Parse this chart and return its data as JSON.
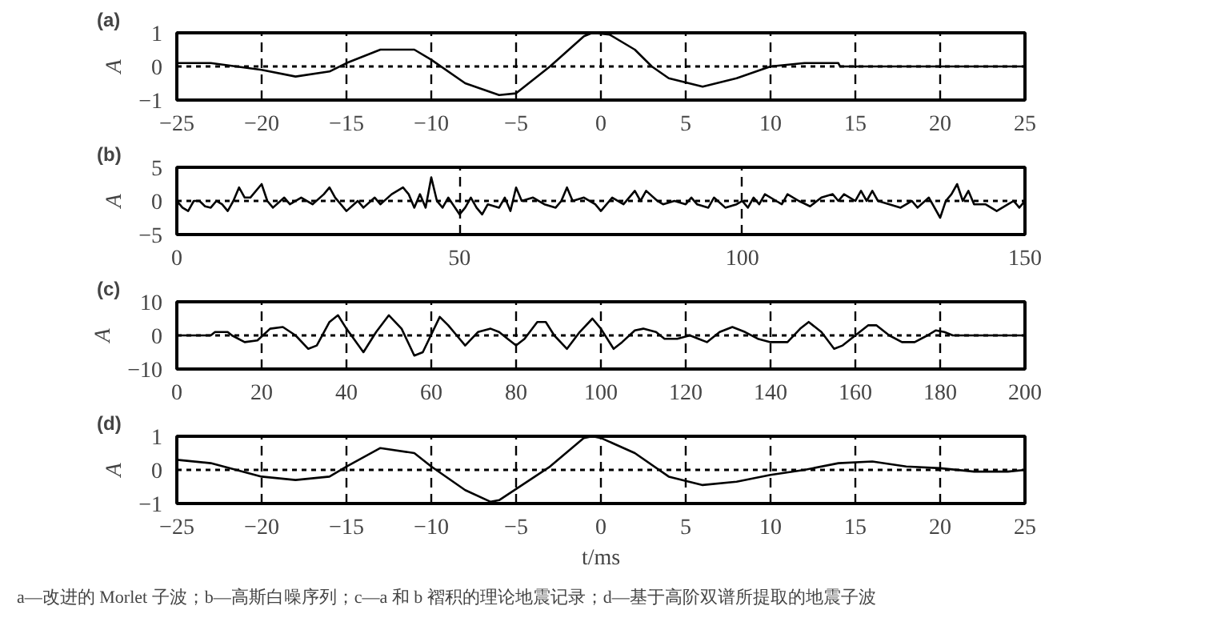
{
  "chart_data": [
    {
      "type": "line",
      "title": "(a)",
      "ylabel": "A",
      "color": "#000000",
      "line_style": "solid",
      "grid": "x",
      "xlim": [
        -25,
        25
      ],
      "ylim": [
        -1,
        1
      ],
      "xticks": [
        -25,
        -20,
        -15,
        -10,
        -5,
        0,
        5,
        10,
        15,
        20,
        25
      ],
      "yticks": [
        -1,
        0,
        1
      ],
      "ref_lines": [
        {
          "axis": "y",
          "value": 0,
          "line_style": "dotted"
        }
      ],
      "x": [
        -25,
        -23,
        -20,
        -18,
        -16,
        -15,
        -13,
        -11,
        -10,
        -8,
        -6,
        -5,
        -3,
        -1,
        -0.5,
        0.5,
        2,
        3,
        4,
        6,
        8,
        10,
        12,
        14,
        14.1,
        25
      ],
      "values": [
        0.1,
        0.1,
        -0.1,
        -0.3,
        -0.15,
        0.1,
        0.5,
        0.5,
        0.2,
        -0.5,
        -0.85,
        -0.8,
        0,
        0.9,
        1.0,
        0.95,
        0.5,
        0,
        -0.35,
        -0.6,
        -0.35,
        0,
        0.1,
        0.1,
        0,
        0
      ]
    },
    {
      "type": "line",
      "title": "(b)",
      "ylabel": "A",
      "color": "#000000",
      "line_style": "solid",
      "grid": "x",
      "xlim": [
        0,
        150
      ],
      "ylim": [
        -5,
        5
      ],
      "xticks": [
        0,
        50,
        100,
        150
      ],
      "yticks": [
        -5,
        0,
        5
      ],
      "ref_lines": [
        {
          "axis": "y",
          "value": 0,
          "line_style": "dotted"
        }
      ],
      "x": [
        0,
        1,
        2,
        3,
        4,
        5,
        6,
        7,
        8,
        9,
        10,
        11,
        12,
        13,
        15,
        16,
        17,
        19,
        20,
        22,
        24,
        26,
        27,
        28,
        30,
        32,
        33,
        35,
        36,
        38,
        40,
        41,
        42,
        43,
        44,
        45,
        46,
        47,
        48,
        50,
        51,
        52,
        53,
        54,
        55,
        57,
        58,
        59,
        60,
        61,
        63,
        65,
        67,
        68,
        69,
        70,
        72,
        74,
        75,
        77,
        79,
        81,
        82,
        83,
        85,
        86,
        88,
        90,
        91,
        92,
        94,
        95,
        97,
        99,
        100,
        101,
        102,
        103,
        104,
        106,
        107,
        108,
        110,
        112,
        114,
        116,
        117,
        118,
        120,
        121,
        122,
        123,
        124,
        126,
        128,
        130,
        131,
        133,
        135,
        136,
        137,
        138,
        139,
        140,
        141,
        143,
        145,
        147,
        148,
        149,
        150
      ],
      "values": [
        0,
        -1,
        -1.5,
        0,
        0,
        -0.8,
        -1,
        0,
        -0.5,
        -1.5,
        0,
        2,
        0.5,
        0.5,
        2.5,
        0,
        -1,
        0.5,
        -0.5,
        0.5,
        -0.5,
        1,
        2,
        0.5,
        -1.5,
        0,
        -1,
        0.5,
        -0.5,
        1,
        2,
        1,
        -1,
        1,
        -1,
        3.5,
        0,
        -1,
        0.5,
        -2,
        -1,
        0.5,
        -1,
        -2,
        -0.5,
        -1,
        0.5,
        -1.5,
        2,
        0,
        0.5,
        -0.5,
        -1,
        0,
        2,
        0,
        0.5,
        -0.5,
        -1.5,
        0.5,
        -0.5,
        1.5,
        0,
        1.5,
        0,
        -0.5,
        0,
        -0.5,
        0.5,
        -0.5,
        -1,
        0.5,
        -1,
        -0.5,
        0,
        -1,
        0.5,
        -0.5,
        1,
        0,
        -0.5,
        1,
        0,
        -0.8,
        0.5,
        1,
        0,
        1,
        0,
        1.5,
        0,
        1.5,
        0,
        -0.5,
        -1,
        0,
        -1,
        0.5,
        -2.5,
        0,
        1,
        2.5,
        0,
        1.5,
        -0.5,
        -0.5,
        -1.5,
        -0.5,
        0,
        -1,
        0
      ]
    },
    {
      "type": "line",
      "title": "(c)",
      "ylabel": "A",
      "color": "#000000",
      "line_style": "solid",
      "grid": "x",
      "xlim": [
        0,
        200
      ],
      "ylim": [
        -10,
        10
      ],
      "xticks": [
        0,
        20,
        40,
        60,
        80,
        100,
        120,
        140,
        160,
        180,
        200
      ],
      "yticks": [
        -10,
        0,
        10
      ],
      "ref_lines": [
        {
          "axis": "y",
          "value": 0,
          "line_style": "dotted"
        }
      ],
      "x": [
        0,
        8,
        9,
        12,
        13,
        16,
        19,
        22,
        25,
        28,
        31,
        33,
        36,
        38,
        40,
        44,
        47,
        50,
        53,
        56,
        58,
        62,
        64,
        66,
        68,
        71,
        74,
        76,
        78,
        80,
        82,
        85,
        87,
        89,
        92,
        95,
        98,
        100,
        103,
        105,
        108,
        110,
        113,
        115,
        118,
        121,
        123,
        125,
        128,
        131,
        134,
        137,
        140,
        144,
        147,
        149,
        152,
        155,
        157,
        160,
        163,
        165,
        168,
        171,
        174,
        177,
        179,
        181,
        183,
        200
      ],
      "values": [
        0,
        0,
        1,
        1,
        0,
        -2,
        -1.5,
        2,
        2.5,
        0,
        -4,
        -3,
        4,
        6,
        2,
        -5,
        1,
        6,
        2,
        -6,
        -5,
        5.5,
        3,
        0,
        -3,
        1,
        2,
        1,
        -1,
        -3,
        -1,
        4,
        4,
        0,
        -4,
        1,
        5,
        2,
        -4,
        -2,
        1.5,
        2,
        1,
        -1,
        -1,
        0,
        -1,
        -2,
        1,
        2.5,
        1,
        -1,
        -2,
        -2,
        2,
        4,
        1,
        -4,
        -3,
        0,
        3,
        3,
        0,
        -2,
        -2,
        0,
        1.5,
        1,
        0,
        0
      ]
    },
    {
      "type": "line",
      "title": "(d)",
      "ylabel": "A",
      "xlabel": "t/ms",
      "color": "#000000",
      "line_style": "solid",
      "grid": "x",
      "xlim": [
        -25,
        25
      ],
      "ylim": [
        -1,
        1
      ],
      "xticks": [
        -25,
        -20,
        -15,
        -10,
        -5,
        0,
        5,
        10,
        15,
        20,
        25
      ],
      "yticks": [
        -1,
        0,
        1
      ],
      "ref_lines": [
        {
          "axis": "y",
          "value": 0,
          "line_style": "dotted"
        }
      ],
      "annotations": [
        "a—改进的 Morlet 子波；b—高斯白噪序列；c—a 和 b 褶积的理论地震记录；d—基于高阶双谱所提取的地震子波"
      ],
      "x": [
        -25,
        -23,
        -20,
        -18,
        -16,
        -15,
        -13,
        -11,
        -10,
        -8,
        -6.5,
        -6,
        -3,
        -1,
        -0.5,
        0,
        2,
        4,
        6,
        8,
        10,
        12,
        14,
        16,
        18,
        20,
        22,
        24,
        25
      ],
      "values": [
        0.3,
        0.2,
        -0.2,
        -0.3,
        -0.2,
        0.1,
        0.65,
        0.5,
        0.1,
        -0.6,
        -0.95,
        -0.9,
        0.1,
        0.95,
        1.0,
        0.95,
        0.5,
        -0.2,
        -0.45,
        -0.35,
        -0.15,
        0,
        0.2,
        0.25,
        0.1,
        0.05,
        -0.05,
        -0.05,
        0
      ]
    }
  ]
}
